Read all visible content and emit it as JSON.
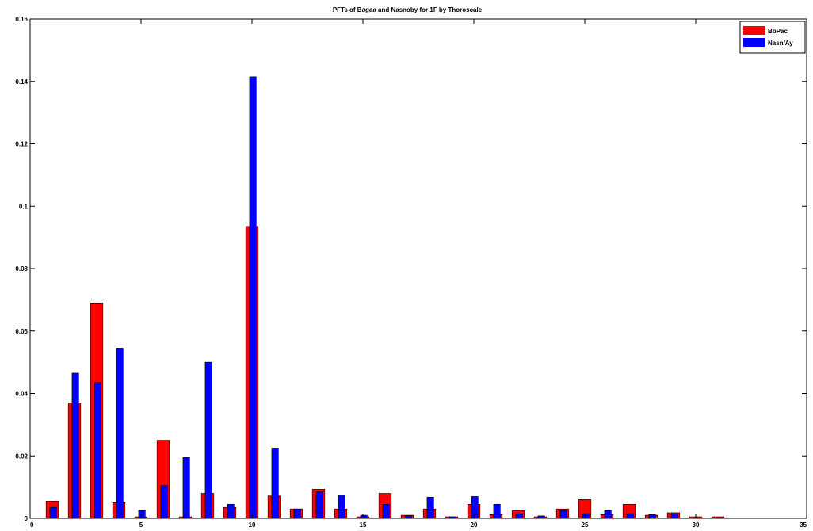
{
  "chart_data": {
    "type": "bar",
    "title": "PFTs of Bagaa and Nasnoby for 1F by Thoroscale",
    "xlabel": "",
    "ylabel": "",
    "xlim": [
      0,
      35
    ],
    "ylim": [
      0,
      0.16
    ],
    "xticks": [
      0,
      5,
      10,
      15,
      20,
      25,
      30,
      35
    ],
    "yticks": [
      0,
      0.02,
      0.04,
      0.06,
      0.08,
      0.1,
      0.12,
      0.14,
      0.16
    ],
    "xtick_labels": [
      "0",
      "5",
      "10",
      "15",
      "20",
      "25",
      "30",
      "35"
    ],
    "ytick_labels": [
      "0",
      "0.02",
      "0.04",
      "0.06",
      "0.08",
      "0.1",
      "0.12",
      "0.14",
      "0.16"
    ],
    "legend_position": "top-right",
    "x": [
      1,
      2,
      3,
      4,
      5,
      6,
      7,
      8,
      9,
      10,
      11,
      12,
      13,
      14,
      15,
      16,
      17,
      18,
      19,
      20,
      21,
      22,
      23,
      24,
      25,
      26,
      27,
      28,
      29,
      30,
      31
    ],
    "series": [
      {
        "name": "BbPac",
        "color": "#ff0000",
        "values": [
          0.0055,
          0.037,
          0.069,
          0.005,
          0.0005,
          0.025,
          0.0005,
          0.008,
          0.0035,
          0.0935,
          0.0072,
          0.003,
          0.0093,
          0.003,
          0.0005,
          0.008,
          0.001,
          0.003,
          0.0005,
          0.0045,
          0.0012,
          0.0025,
          0.0005,
          0.003,
          0.006,
          0.0012,
          0.0045,
          0.001,
          0.0018,
          0.0005,
          0.0005
        ]
      },
      {
        "name": "Nasn/Ay",
        "color": "#0000ff",
        "values": [
          0.0035,
          0.0465,
          0.0435,
          0.0545,
          0.0025,
          0.0105,
          0.0195,
          0.05,
          0.0045,
          0.1415,
          0.0225,
          0.003,
          0.0085,
          0.0075,
          0.001,
          0.0045,
          0.0008,
          0.0068,
          0.0005,
          0.007,
          0.0045,
          0.0015,
          0.0008,
          0.0025,
          0.0015,
          0.0025,
          0.0015,
          0.0012,
          0.0015,
          0.0002,
          0.0002
        ]
      }
    ]
  }
}
